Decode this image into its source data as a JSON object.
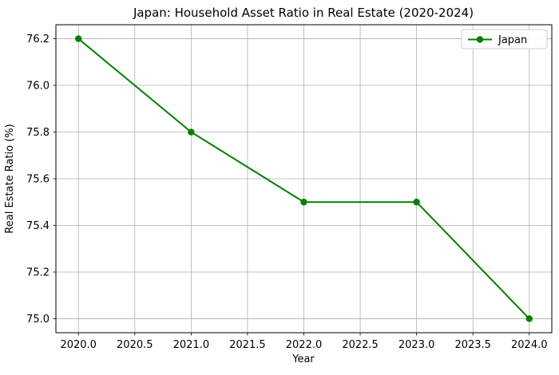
{
  "chart_data": {
    "type": "line",
    "title": "Japan: Household Asset Ratio in Real Estate (2020-2024)",
    "xlabel": "Year",
    "ylabel": "Real Estate Ratio (%)",
    "x": [
      2020,
      2021,
      2022,
      2023,
      2024
    ],
    "series": [
      {
        "name": "Japan",
        "values": [
          76.2,
          75.8,
          75.5,
          75.5,
          75.0
        ],
        "color": "#008000",
        "marker": "circle"
      }
    ],
    "xtick_labels": [
      "2020.0",
      "2020.5",
      "2021.0",
      "2021.5",
      "2022.0",
      "2022.5",
      "2023.0",
      "2023.5",
      "2024.0"
    ],
    "ytick_labels": [
      "75.0",
      "75.2",
      "75.4",
      "75.6",
      "75.8",
      "76.0",
      "76.2"
    ],
    "xlim": [
      2019.8,
      2024.2
    ],
    "ylim": [
      74.94,
      76.26
    ],
    "grid": true,
    "legend": {
      "position": "upper-right",
      "entries": [
        "Japan"
      ]
    },
    "colors": {
      "line": "#008000",
      "grid": "#b0b0b0",
      "spine": "#000000",
      "background": "#ffffff",
      "text": "#000000",
      "legend_border": "#cccccc"
    }
  }
}
